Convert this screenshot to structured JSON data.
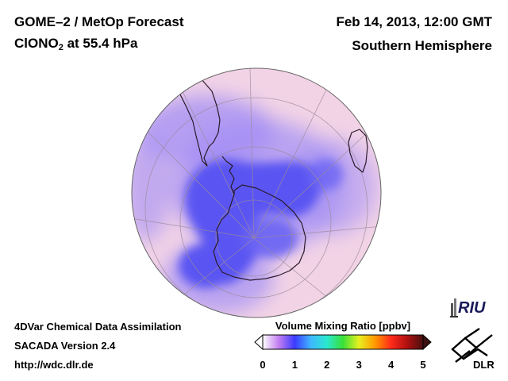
{
  "header": {
    "title_line1": "GOME–2 / MetOp Forecast",
    "title_species": "ClONO",
    "title_species_sub": "2",
    "title_level": " at 55.4 hPa",
    "date": "Feb 14, 2013, 12:00 GMT",
    "hemisphere": "Southern Hemisphere"
  },
  "footer": {
    "line1": "4DVar Chemical Data Assimilation",
    "line2": "SACADA Version 2.4",
    "line3": "http://wdc.dlr.de"
  },
  "colorbar": {
    "title": "Volume Mixing Ratio [ppbv]",
    "ticks": [
      "0",
      "1",
      "2",
      "3",
      "4",
      "5"
    ],
    "range": [
      0,
      5
    ],
    "colors": [
      "#ffffff",
      "#c27df0",
      "#3b3bff",
      "#3fb7ff",
      "#2ae8d0",
      "#38e038",
      "#e8f020",
      "#ff9900",
      "#ff2a1a",
      "#b01010",
      "#4a1010"
    ]
  },
  "map": {
    "projection": "orthographic, south-polar view",
    "field": "ClONO2 volume mixing ratio",
    "colors": {
      "background_field": "#f2d3e6",
      "low_field": "#5a55f2",
      "mid_field": "#a28ef5",
      "coastline": "#2a1a2a",
      "graticule": "#9c8b98"
    }
  },
  "logos": {
    "riu": "RIU",
    "dlr": "DLR"
  }
}
